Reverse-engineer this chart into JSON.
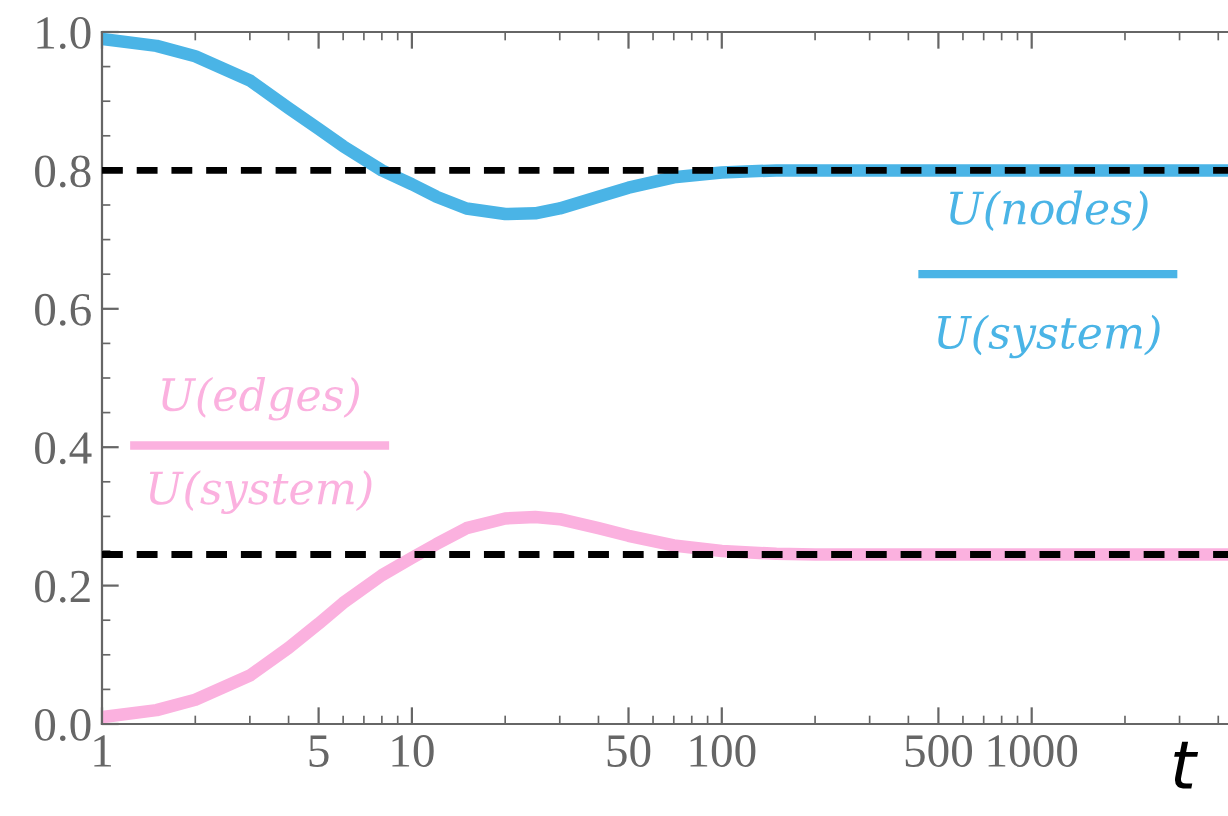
{
  "chart_data": {
    "type": "line",
    "xlabel": "t",
    "log": "x",
    "xlim": [
      1,
      4300
    ],
    "xticks": [
      1,
      5,
      10,
      50,
      100,
      500,
      1000
    ],
    "ylim": [
      0,
      1
    ],
    "yticks": [
      {
        "value": 0,
        "label": "0.0"
      },
      0.2,
      0.4,
      0.6,
      0.8,
      {
        "value": 1,
        "label": "1.0"
      }
    ],
    "grid": false,
    "legend": false,
    "x": [
      1,
      1.5,
      2,
      3,
      4,
      5,
      6,
      8,
      10,
      12,
      15,
      20,
      25,
      30,
      40,
      50,
      70,
      100,
      150,
      200,
      500,
      1000,
      4300
    ],
    "series": [
      {
        "color": "#4ab4e6",
        "values": [
          0.99,
          0.98,
          0.965,
          0.93,
          0.89,
          0.86,
          0.835,
          0.8,
          0.78,
          0.762,
          0.745,
          0.737,
          0.738,
          0.745,
          0.762,
          0.775,
          0.79,
          0.797,
          0.8,
          0.8,
          0.8,
          0.8,
          0.8
        ]
      },
      {
        "color": "#fbb1df",
        "values": [
          0.01,
          0.02,
          0.035,
          0.07,
          0.11,
          0.145,
          0.175,
          0.215,
          0.24,
          0.26,
          0.283,
          0.297,
          0.299,
          0.296,
          0.283,
          0.272,
          0.258,
          0.25,
          0.246,
          0.245,
          0.245,
          0.245,
          0.245
        ]
      }
    ],
    "ref_lines": [
      {
        "axis": "y",
        "value": 0.8,
        "color": "#000000",
        "line_style": "dashed"
      },
      {
        "axis": "y",
        "value": 0.245,
        "color": "#000000",
        "line_style": "dashed"
      }
    ],
    "annotations": [
      "U(nodes)",
      "U(system)",
      "U(edges)",
      "U(system)"
    ]
  }
}
